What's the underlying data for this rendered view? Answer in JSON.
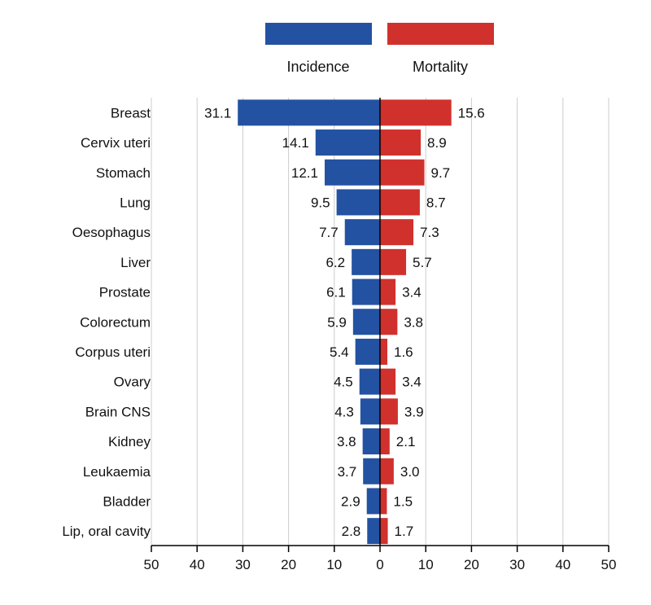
{
  "chart_data": {
    "type": "bar",
    "orientation": "horizontal-diverging",
    "categories": [
      "Breast",
      "Cervix uteri",
      "Stomach",
      "Lung",
      "Oesophagus",
      "Liver",
      "Prostate",
      "Colorectum",
      "Corpus uteri",
      "Ovary",
      "Brain CNS",
      "Kidney",
      "Leukaemia",
      "Bladder",
      "Lip, oral cavity"
    ],
    "series": [
      {
        "name": "Incidence",
        "color": "#2352a2",
        "side": "left",
        "values": [
          31.1,
          14.1,
          12.1,
          9.5,
          7.7,
          6.2,
          6.1,
          5.9,
          5.4,
          4.5,
          4.3,
          3.8,
          3.7,
          2.9,
          2.8
        ],
        "labels": [
          "31.1",
          "14.1",
          "12.1",
          "9.5",
          "7.7",
          "6.2",
          "6.1",
          "5.9",
          "5.4",
          "4.5",
          "4.3",
          "3.8",
          "3.7",
          "2.9",
          "2.8"
        ]
      },
      {
        "name": "Mortality",
        "color": "#d0312d",
        "side": "right",
        "values": [
          15.6,
          8.9,
          9.7,
          8.7,
          7.3,
          5.7,
          3.4,
          3.8,
          1.6,
          3.4,
          3.9,
          2.1,
          3.0,
          1.5,
          1.7
        ],
        "labels": [
          "15.6",
          "8.9",
          "9.7",
          "8.7",
          "7.3",
          "5.7",
          "3.4",
          "3.8",
          "1.6",
          "3.4",
          "3.9",
          "2.1",
          "3.0",
          "1.5",
          "1.7"
        ]
      }
    ],
    "xlim": [
      -50,
      50
    ],
    "xticks": [
      "50",
      "40",
      "30",
      "20",
      "10",
      "0",
      "10",
      "20",
      "30",
      "40",
      "50"
    ],
    "grid": true,
    "legend": "top-center"
  }
}
